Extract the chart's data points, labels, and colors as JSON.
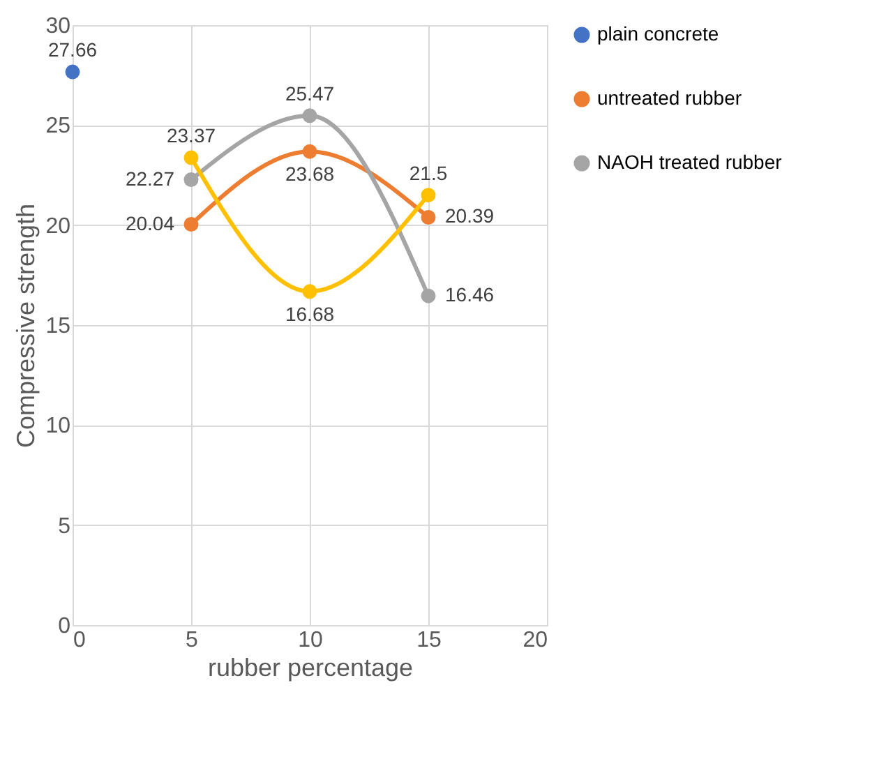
{
  "chart_data": {
    "type": "line",
    "xlabel": "rubber percentage",
    "ylabel": "Compressive strength",
    "xlim": [
      0,
      20
    ],
    "xticks": [
      0,
      5,
      10,
      15,
      20
    ],
    "ylim": [
      0,
      30
    ],
    "yticks": [
      0,
      5,
      10,
      15,
      20,
      25,
      30
    ],
    "grid": true,
    "legend": "right",
    "marker": "circle",
    "data_labels": true,
    "series": [
      {
        "name": "plain concrete",
        "color": "#4472c4",
        "x": [
          0
        ],
        "values": [
          27.66
        ]
      },
      {
        "name": "untreated rubber",
        "color": "#ed7d31",
        "x": [
          5,
          10,
          15
        ],
        "values": [
          20.04,
          23.68,
          20.39
        ]
      },
      {
        "name": "NAOH treated rubber",
        "color": "#a5a5a5",
        "x": [
          5,
          10,
          15
        ],
        "values": [
          22.27,
          25.47,
          16.46
        ]
      },
      {
        "color": "#ffc000",
        "x": [
          5,
          10,
          15
        ],
        "values": [
          23.37,
          16.68,
          21.5
        ]
      }
    ]
  }
}
